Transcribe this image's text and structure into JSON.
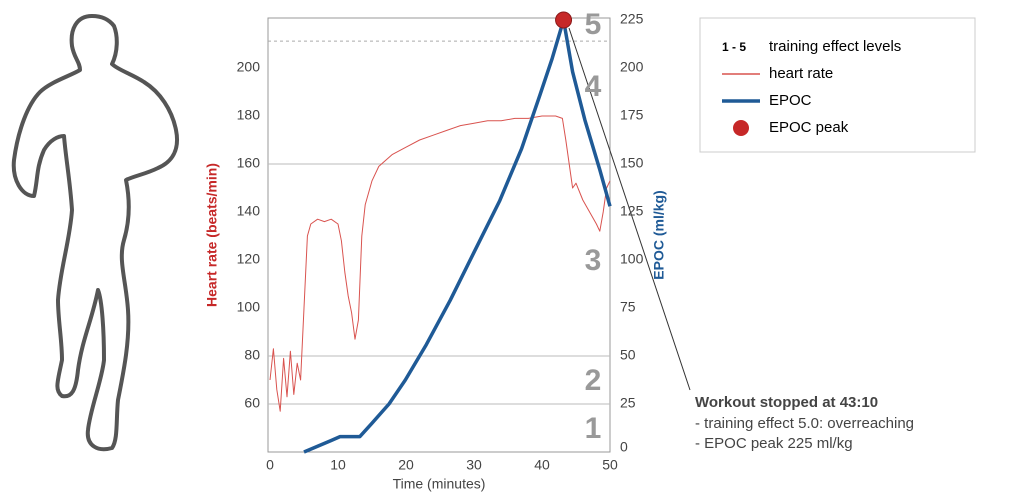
{
  "chart_data": {
    "type": "line",
    "xlabel": "Time (minutes)",
    "ylabel": "Heart rate (beats/min)",
    "y2label": "EPOC (ml/kg)",
    "xlim": [
      0,
      50
    ],
    "xticks": [
      0,
      10,
      20,
      30,
      40,
      50
    ],
    "ylim": [
      40,
      220
    ],
    "yticks": [
      60,
      80,
      100,
      120,
      140,
      160,
      180,
      200
    ],
    "y2lim": [
      0,
      225
    ],
    "y2ticks": [
      0,
      25,
      50,
      75,
      100,
      125,
      150,
      175,
      200,
      225
    ],
    "level_lines": [
      25,
      50,
      150
    ],
    "peak_line": 214,
    "levels": [
      "1",
      "2",
      "3",
      "4",
      "5"
    ],
    "series": [
      {
        "name": "heart rate",
        "color": "#d9534f",
        "axis": "y",
        "x": [
          0,
          0.5,
          1,
          1.5,
          2,
          2.5,
          3,
          3.5,
          4,
          4.5,
          5,
          5.5,
          6,
          7,
          8,
          9,
          10,
          10.5,
          11,
          11.5,
          12,
          12.5,
          13,
          13.5,
          14,
          15,
          16,
          18,
          20,
          22,
          24,
          26,
          28,
          30,
          32,
          34,
          36,
          38,
          40,
          42,
          43,
          43.5,
          44,
          44.5,
          45,
          46,
          47,
          48,
          48.5,
          49,
          49.5,
          50
        ],
        "values": [
          70,
          83,
          66,
          57,
          79,
          63,
          82,
          64,
          77,
          70,
          100,
          130,
          135,
          137,
          136,
          137,
          135,
          128,
          115,
          105,
          98,
          87,
          95,
          130,
          143,
          153,
          159,
          164,
          167,
          170,
          172,
          174,
          176,
          177,
          178,
          178,
          179,
          179,
          180,
          180,
          179,
          170,
          160,
          150,
          152,
          145,
          140,
          135,
          132,
          140,
          150,
          153
        ]
      },
      {
        "name": "EPOC",
        "color": "#1f5a96",
        "axis": "y2",
        "x": [
          5,
          7,
          9,
          10.3,
          12,
          13.2,
          15,
          17.5,
          19.9,
          23,
          26.5,
          30,
          33.8,
          37,
          39.7,
          41.5,
          43.17,
          44.5,
          46.3,
          48.5,
          50
        ],
        "values": [
          0,
          3,
          6,
          8,
          8,
          8,
          15,
          25,
          37.5,
          56,
          79,
          104,
          131,
          158,
          186,
          205,
          225,
          198,
          173,
          147,
          128
        ]
      }
    ],
    "peak": {
      "name": "EPOC peak",
      "x": 43.17,
      "value": 225,
      "color": "#c62828"
    },
    "legend_levels": {
      "symbol": "1 - 5",
      "label": "training effect levels"
    },
    "annotation": {
      "title": "Workout stopped at 43:10",
      "lines": [
        "- training effect 5.0: overreaching",
        "- EPOC peak 225 ml/kg"
      ]
    }
  }
}
